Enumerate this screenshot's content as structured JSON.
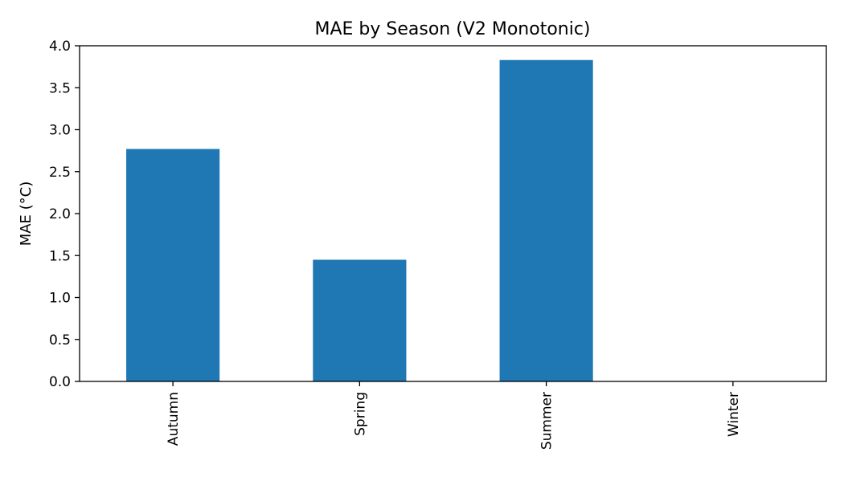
{
  "chart_data": {
    "type": "bar",
    "title": "MAE by Season (V2 Monotonic)",
    "xlabel": "",
    "ylabel": "MAE (°C)",
    "categories": [
      "Autumn",
      "Spring",
      "Summer",
      "Winter"
    ],
    "values": [
      2.77,
      1.45,
      3.83,
      0.0
    ],
    "ylim": [
      0,
      4.0
    ],
    "yticks": [
      0.0,
      0.5,
      1.0,
      1.5,
      2.0,
      2.5,
      3.0,
      3.5,
      4.0
    ],
    "ytick_labels": [
      "0.0",
      "0.5",
      "1.0",
      "1.5",
      "2.0",
      "2.5",
      "3.0",
      "3.5",
      "4.0"
    ],
    "grid": false,
    "legend": "none",
    "bar_color": "#1f77b4",
    "x_tick_rotation": "vertical"
  }
}
